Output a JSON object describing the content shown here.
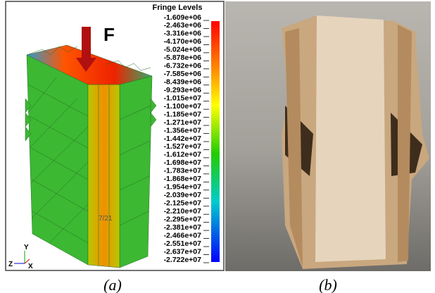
{
  "panel_a": {
    "load_label": "F",
    "legend_title": "Fringe Levels",
    "levels": [
      "-1.609e+06",
      "-2.463e+06",
      "-3.316e+06",
      "-4.170e+06",
      "-5.024e+06",
      "-5.878e+06",
      "-6.732e+06",
      "-7.585e+06",
      "-8.439e+06",
      "-9.293e+06",
      "-1.015e+07",
      "-1.100e+07",
      "-1.185e+07",
      "-1.271e+07",
      "-1.356e+07",
      "-1.442e+07",
      "-1.527e+07",
      "-1.612e+07",
      "-1.698e+07",
      "-1.783e+07",
      "-1.868e+07",
      "-1.954e+07",
      "-2.039e+07",
      "-2.125e+07",
      "-2.210e+07",
      "-2.295e+07",
      "-2.381e+07",
      "-2.466e+07",
      "-2.551e+07",
      "-2.637e+07",
      "-2.722e+07"
    ],
    "frame_label": "7/21",
    "axis_y": "Y",
    "axis_z": "Z",
    "axis_x": "X",
    "caption": "(a)"
  },
  "panel_b": {
    "caption": "(b)"
  }
}
